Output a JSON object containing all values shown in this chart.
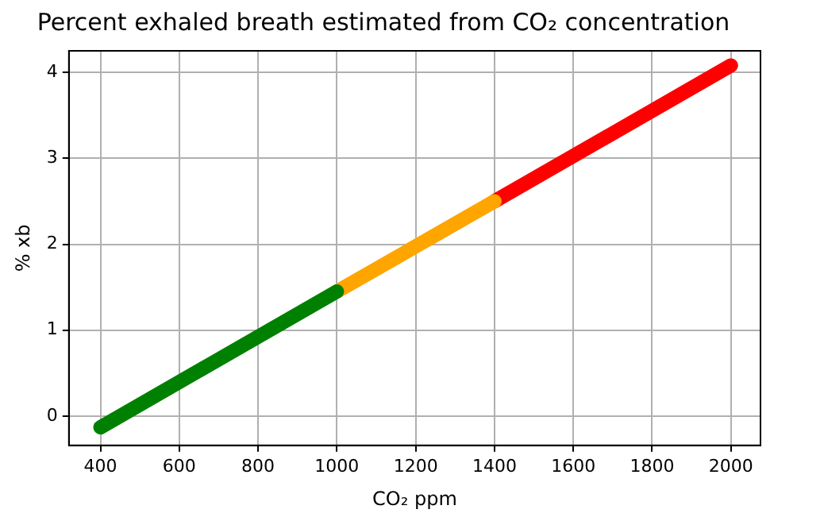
{
  "chart_data": {
    "type": "line",
    "title": "Percent exhaled breath estimated from CO₂ concentration",
    "xlabel": "CO₂ ppm",
    "ylabel": "% xb",
    "series": [
      {
        "type": "line",
        "color": "#008000",
        "x": [
          400,
          1000
        ],
        "values": [
          -0.13,
          1.45
        ]
      },
      {
        "type": "line",
        "color": "#ffa500",
        "x": [
          1000,
          1400
        ],
        "values": [
          1.45,
          2.5
        ]
      },
      {
        "type": "line",
        "color": "#ff0000",
        "x": [
          1400,
          2000
        ],
        "values": [
          2.5,
          4.08
        ]
      }
    ],
    "xlim": [
      320,
      2075
    ],
    "xticks": [
      400,
      600,
      800,
      1000,
      1200,
      1400,
      1600,
      1800,
      2000
    ],
    "ylim": [
      -0.34,
      4.25
    ],
    "yticks": [
      0,
      1,
      2,
      3,
      4
    ],
    "grid": true,
    "legend": false,
    "marker": "none",
    "line_style": "solid"
  }
}
